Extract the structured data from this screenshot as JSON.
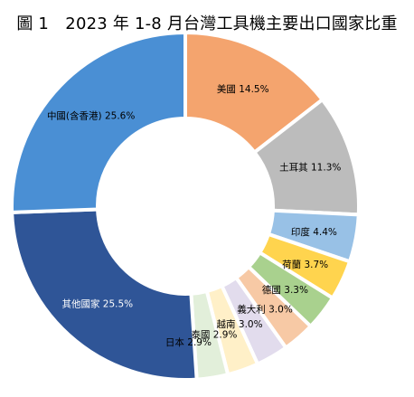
{
  "chart_data": {
    "type": "pie",
    "title": "圖 1　2023 年 1-8 月台灣工具機主要出口國家比重",
    "style": "donut",
    "slices": [
      {
        "label": "美國",
        "value": 14.5,
        "color": "#f4a46e",
        "text_color": "#000000"
      },
      {
        "label": "土耳其",
        "value": 11.3,
        "color": "#bcbcbc",
        "text_color": "#000000"
      },
      {
        "label": "印度",
        "value": 4.4,
        "color": "#98c1e6",
        "text_color": "#000000"
      },
      {
        "label": "荷蘭",
        "value": 3.7,
        "color": "#ffd44e",
        "text_color": "#000000"
      },
      {
        "label": "德國",
        "value": 3.3,
        "color": "#a9d18e",
        "text_color": "#000000"
      },
      {
        "label": "義大利",
        "value": 3.0,
        "color": "#f7c9a5",
        "text_color": "#000000"
      },
      {
        "label": "越南",
        "value": 3.0,
        "color": "#e2dced",
        "text_color": "#000000"
      },
      {
        "label": "泰國",
        "value": 2.9,
        "color": "#fff0c8",
        "text_color": "#000000"
      },
      {
        "label": "日本",
        "value": 2.9,
        "color": "#e2efda",
        "text_color": "#000000"
      },
      {
        "label": "其他國家",
        "value": 25.5,
        "color": "#2f5597",
        "text_color": "#ffffff"
      },
      {
        "label": "中國(含香港)",
        "value": 25.6,
        "color": "#4a8fd4",
        "text_color": "#000000"
      }
    ],
    "value_suffix": "%"
  }
}
